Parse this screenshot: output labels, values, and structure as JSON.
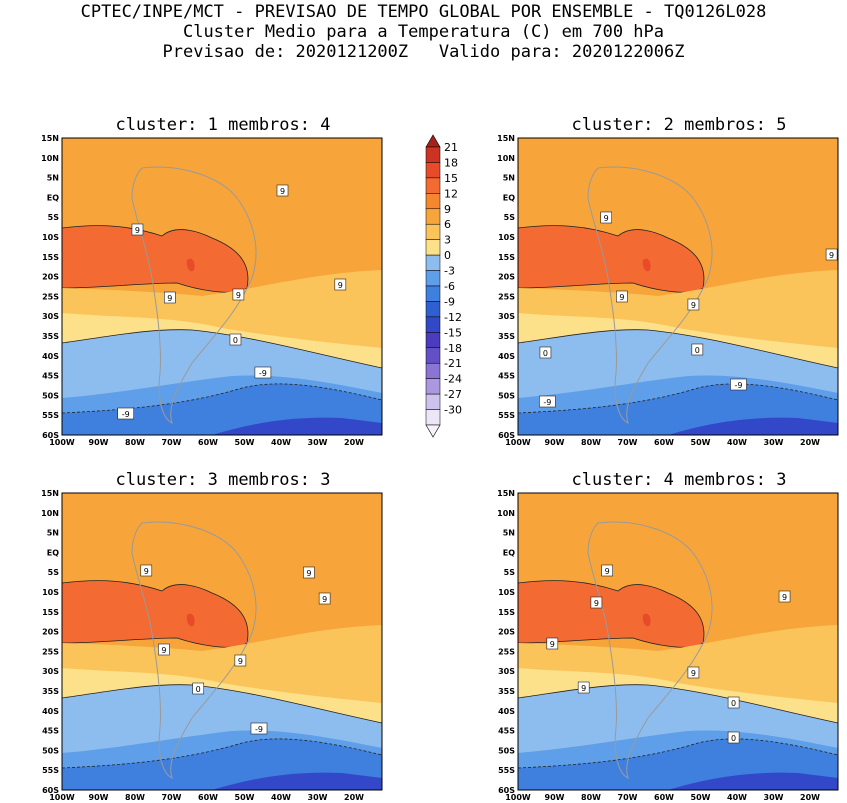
{
  "header": {
    "line1": "CPTEC/INPE/MCT - PREVISAO DE TEMPO GLOBAL POR ENSEMBLE - TQ0126L028",
    "line2": "Cluster Medio para a Temperatura (C) em 700 hPa",
    "line3": "Previsao de: 2020121200Z   Valido para: 2020122006Z"
  },
  "axes": {
    "lat_ticks": [
      "15N",
      "10N",
      "5N",
      "EQ",
      "5S",
      "10S",
      "15S",
      "20S",
      "25S",
      "30S",
      "35S",
      "40S",
      "45S",
      "50S",
      "55S",
      "60S"
    ],
    "lon_ticks": [
      "100W",
      "90W",
      "80W",
      "70W",
      "60W",
      "50W",
      "40W",
      "30W",
      "20W"
    ]
  },
  "colorbar": {
    "labels": [
      "21",
      "18",
      "15",
      "12",
      "9",
      "6",
      "3",
      "0",
      "-3",
      "-6",
      "-9",
      "-12",
      "-15",
      "-18",
      "-21",
      "-24",
      "-27",
      "-30"
    ],
    "colors": [
      "#cc3322",
      "#e84a2a",
      "#f36a33",
      "#f5882e",
      "#f7a53a",
      "#fbc45a",
      "#fde08a",
      "#8dbcef",
      "#5f9ee8",
      "#3f80df",
      "#2f60d2",
      "#3348c8",
      "#4a3bbf",
      "#6450c6",
      "#8a74d4",
      "#ab98e0",
      "#cdc2ee",
      "#ebe6f8"
    ]
  },
  "panels": [
    {
      "title": "cluster: 1  membros: 4",
      "contour_labels": [
        "9",
        "9",
        "9",
        "9",
        "9",
        "0",
        "-9",
        "-9"
      ]
    },
    {
      "title": "cluster: 2  membros: 5",
      "contour_labels": [
        "9",
        "9",
        "9",
        "9",
        "0",
        "0",
        "-9",
        "-9"
      ]
    },
    {
      "title": "cluster: 3  membros: 3",
      "contour_labels": [
        "9",
        "9",
        "9",
        "9",
        "9",
        "0",
        "-9"
      ]
    },
    {
      "title": "cluster: 4  membros: 3",
      "contour_labels": [
        "9",
        "9",
        "9",
        "9",
        "9",
        "9",
        "0",
        "0",
        "-9"
      ]
    }
  ]
}
